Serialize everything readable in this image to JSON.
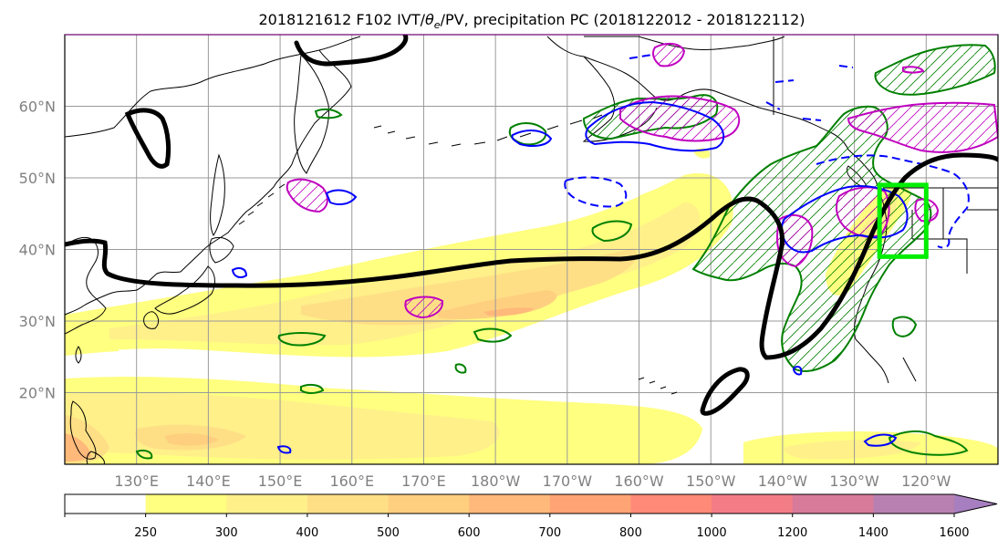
{
  "title": "2018121612 F102 IVT/θe/PV, precipitation PC (2018122012 - 2018122112)",
  "title_parts": {
    "prefix": "2018121612 F102 IVT/",
    "theta": "θ",
    "theta_sub": "e",
    "suffix": "/PV, precipitation PC (2018122012 - 2018122112)"
  },
  "map": {
    "projection": "cylindrical",
    "lon_range": [
      120,
      250
    ],
    "lat_range": [
      10,
      70
    ],
    "lat_ticks": [
      {
        "value": 20,
        "label": "20°N"
      },
      {
        "value": 30,
        "label": "30°N"
      },
      {
        "value": 40,
        "label": "40°N"
      },
      {
        "value": 50,
        "label": "50°N"
      },
      {
        "value": 60,
        "label": "60°N"
      }
    ],
    "lon_ticks": [
      {
        "value": 130,
        "label": "130°E"
      },
      {
        "value": 140,
        "label": "140°E"
      },
      {
        "value": 150,
        "label": "150°E"
      },
      {
        "value": 160,
        "label": "160°E"
      },
      {
        "value": 170,
        "label": "170°E"
      },
      {
        "value": 180,
        "label": "180°W"
      },
      {
        "value": 190,
        "label": "170°W"
      },
      {
        "value": 200,
        "label": "160°W"
      },
      {
        "value": 210,
        "label": "150°W"
      },
      {
        "value": 220,
        "label": "140°W"
      },
      {
        "value": 230,
        "label": "130°W"
      },
      {
        "value": 240,
        "label": "120°W"
      }
    ],
    "grid": true,
    "highlight_box": {
      "lon_min": 233.5,
      "lon_max": 240,
      "lat_min": 39,
      "lat_max": 49,
      "color": "#00ee00"
    }
  },
  "colorbar": {
    "orientation": "horizontal",
    "extend": "max",
    "levels": [
      250,
      300,
      400,
      500,
      600,
      700,
      800,
      1000,
      1200,
      1400,
      1600
    ],
    "labels": [
      "250",
      "300",
      "400",
      "500",
      "600",
      "700",
      "800",
      "1000",
      "1200",
      "1400",
      "1600"
    ],
    "colors": [
      "#ffffff",
      "#ffff80",
      "#fff08a",
      "#ffdf86",
      "#ffcf80",
      "#ffb97a",
      "#ffa474",
      "#ff8a78",
      "#f27d87",
      "#d87a99",
      "#b880b0",
      "#a77fc0"
    ]
  },
  "legend_colors": {
    "ivt_fill": "#ffff80",
    "pv_contour": "#000000",
    "theta_e_contour": "#0000ff",
    "precip_positive": "#008000",
    "precip_negative": "#c000c0"
  }
}
